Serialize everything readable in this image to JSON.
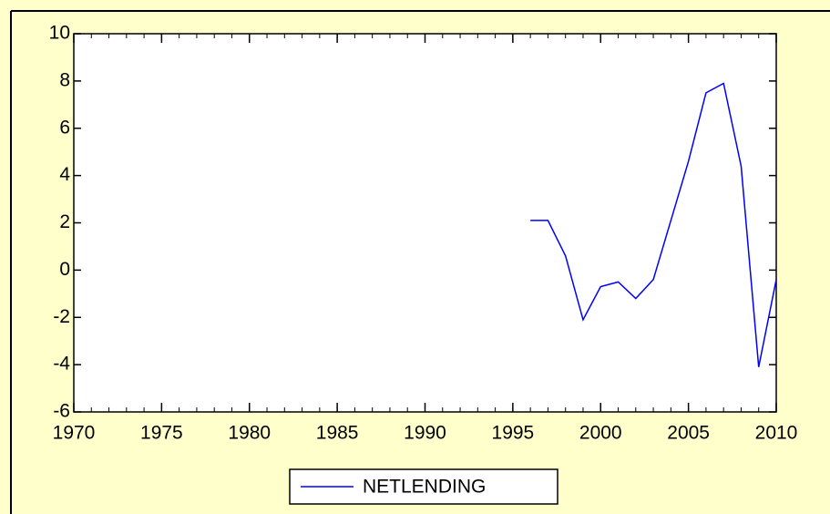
{
  "chart_data": {
    "type": "line",
    "x": [
      1996,
      1997,
      1998,
      1999,
      2000,
      2001,
      2002,
      2003,
      2004,
      2005,
      2006,
      2007,
      2008,
      2009,
      2010
    ],
    "series": [
      {
        "name": "NETLENDING",
        "color": "#0000ff",
        "values": [
          2.1,
          2.1,
          0.6,
          -2.1,
          -0.7,
          -0.5,
          -1.2,
          -0.4,
          2.1,
          4.6,
          7.5,
          7.9,
          4.4,
          -4.1,
          -0.4
        ]
      }
    ],
    "xlim": [
      1970,
      2010
    ],
    "xticks": [
      1970,
      1975,
      1980,
      1985,
      1990,
      1995,
      2000,
      2005,
      2010
    ],
    "ylim": [
      -6,
      10
    ],
    "yticks": [
      -6,
      -4,
      -2,
      0,
      2,
      4,
      6,
      8,
      10
    ],
    "grid": false,
    "legend": "bottom"
  }
}
